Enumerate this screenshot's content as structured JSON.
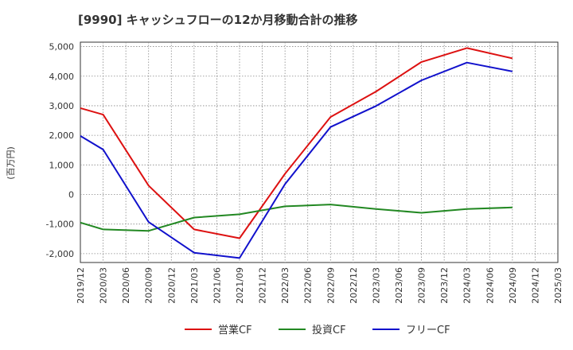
{
  "chart_data": {
    "type": "line",
    "title": "[9990]  キャッシュフローの12か月移動合計の推移",
    "ylabel": "(百万円)",
    "xlabel": "",
    "ylim": [
      -2300,
      5150
    ],
    "yticks": [
      -2000,
      -1000,
      0,
      1000,
      2000,
      3000,
      4000,
      5000
    ],
    "ytick_labels": [
      "-2,000",
      "-1,000",
      "0",
      "1,000",
      "2,000",
      "3,000",
      "4,000",
      "5,000"
    ],
    "x_labels": [
      "2019/12",
      "2020/03",
      "2020/06",
      "2020/09",
      "2020/12",
      "2021/03",
      "2021/06",
      "2021/09",
      "2021/12",
      "2022/03",
      "2022/06",
      "2022/09",
      "2022/12",
      "2023/03",
      "2023/06",
      "2023/09",
      "2023/12",
      "2024/03",
      "2024/06",
      "2024/09",
      "2024/12",
      "2025/03"
    ],
    "grid": true,
    "legend_position": "bottom",
    "series": [
      {
        "name": "営業CF",
        "color": "#dd1111",
        "points": [
          [
            0,
            2920
          ],
          [
            1,
            2700
          ],
          [
            3,
            300
          ],
          [
            5,
            -1180
          ],
          [
            7,
            -1480
          ],
          [
            9,
            700
          ],
          [
            11,
            2620
          ],
          [
            13,
            3480
          ],
          [
            15,
            4480
          ],
          [
            17,
            4950
          ],
          [
            19,
            4600
          ]
        ]
      },
      {
        "name": "投資CF",
        "color": "#228822",
        "points": [
          [
            0,
            -950
          ],
          [
            1,
            -1180
          ],
          [
            3,
            -1230
          ],
          [
            5,
            -780
          ],
          [
            7,
            -670
          ],
          [
            9,
            -400
          ],
          [
            11,
            -340
          ],
          [
            13,
            -490
          ],
          [
            15,
            -620
          ],
          [
            17,
            -490
          ],
          [
            19,
            -440
          ]
        ]
      },
      {
        "name": "フリーCF",
        "color": "#1111cc",
        "points": [
          [
            0,
            1980
          ],
          [
            1,
            1520
          ],
          [
            3,
            -930
          ],
          [
            5,
            -1970
          ],
          [
            7,
            -2150
          ],
          [
            9,
            350
          ],
          [
            11,
            2280
          ],
          [
            13,
            2990
          ],
          [
            15,
            3860
          ],
          [
            17,
            4460
          ],
          [
            19,
            4160
          ]
        ]
      }
    ]
  }
}
